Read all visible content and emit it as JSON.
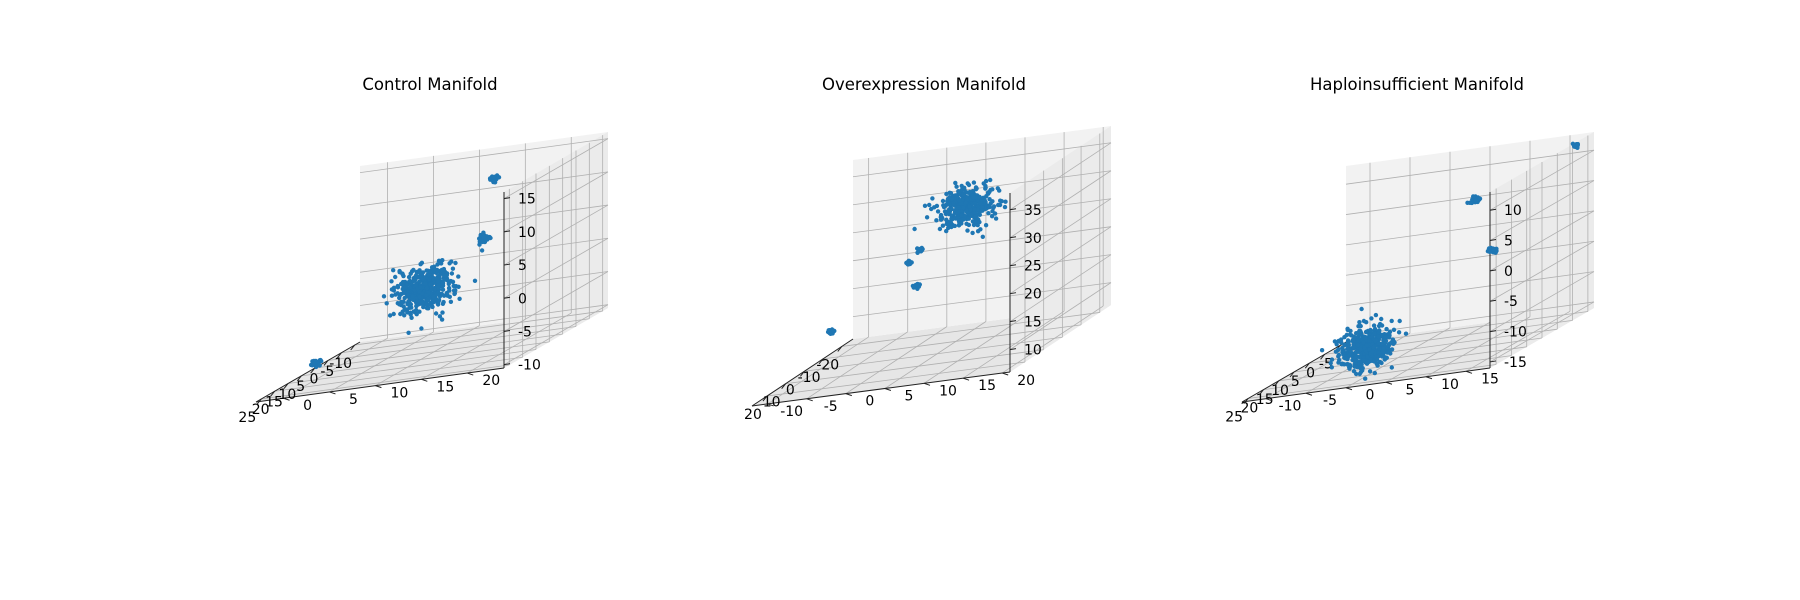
{
  "figure": {
    "background": "#ffffff",
    "pane_colors": [
      "#f2f2f2",
      "#ebebeb",
      "#e6e6e6"
    ],
    "grid_color": "#b0b0b0",
    "marker_color": "#1f77b4"
  },
  "chart_data": [
    {
      "type": "scatter",
      "title": "Control Manifold",
      "xlim": [
        -12,
        27
      ],
      "ylim": [
        -3,
        24
      ],
      "zlim": [
        -10.5,
        16
      ],
      "xticks": [
        -10,
        -5,
        0,
        5,
        10,
        15,
        20,
        25
      ],
      "yticks": [
        0,
        5,
        10,
        15,
        20
      ],
      "zticks": [
        -10,
        -5,
        0,
        5,
        10,
        15
      ],
      "grid": true,
      "clusters": [
        {
          "x": -10.8,
          "y": 12.0,
          "z": 11.5,
          "spread": 0.3,
          "n": 25
        },
        {
          "x": 9.5,
          "y": -1.5,
          "z": -9.0,
          "spread": 0.3,
          "n": 25
        },
        {
          "x": 14.0,
          "y": 18.0,
          "z": 7.0,
          "spread": 0.4,
          "n": 30
        },
        {
          "x": 15.5,
          "y": 12.0,
          "z": 1.0,
          "spread": 1.6,
          "n": 420
        }
      ]
    },
    {
      "type": "scatter",
      "title": "Overexpression Manifold",
      "xlim": [
        -26,
        28
      ],
      "ylim": [
        -12,
        21
      ],
      "zlim": [
        6,
        38
      ],
      "xticks": [
        -20,
        -10,
        0,
        10,
        20
      ],
      "yticks": [
        -10,
        -5,
        0,
        5,
        10,
        15,
        20
      ],
      "zticks": [
        10,
        15,
        20,
        25,
        30,
        35
      ],
      "grid": true,
      "clusters": [
        {
          "x": -22.5,
          "y": -4.0,
          "z": 19.0,
          "spread": 0.2,
          "n": 15
        },
        {
          "x": -22.0,
          "y": -2.5,
          "z": 21.0,
          "spread": 0.2,
          "n": 15
        },
        {
          "x": -2.0,
          "y": -9.0,
          "z": 12.0,
          "spread": 0.25,
          "n": 20
        },
        {
          "x": 17.0,
          "y": 6.5,
          "z": 21.5,
          "spread": 0.2,
          "n": 15
        },
        {
          "x": 14.0,
          "y": 12.0,
          "z": 34.0,
          "spread": 1.8,
          "n": 380
        }
      ]
    },
    {
      "type": "scatter",
      "title": "Haploinsufficient Manifold",
      "xlim": [
        -7,
        27
      ],
      "ylim": [
        -13,
        18
      ],
      "zlim": [
        -16,
        13
      ],
      "xticks": [
        -5,
        0,
        5,
        10,
        15,
        20,
        25
      ],
      "yticks": [
        -10,
        -5,
        0,
        5,
        10,
        15
      ],
      "zticks": [
        -15,
        -10,
        -5,
        0,
        5,
        10
      ],
      "grid": true,
      "clusters": [
        {
          "x": -5.0,
          "y": 4.0,
          "z": 5.0,
          "spread": 0.3,
          "n": 25
        },
        {
          "x": -3.5,
          "y": 17.0,
          "z": 12.0,
          "spread": 0.2,
          "n": 15
        },
        {
          "x": 21.0,
          "y": 16.0,
          "z": 2.0,
          "spread": 0.3,
          "n": 25
        },
        {
          "x": 12.5,
          "y": -3.0,
          "z": -13.0,
          "spread": 1.7,
          "n": 420
        }
      ]
    }
  ]
}
